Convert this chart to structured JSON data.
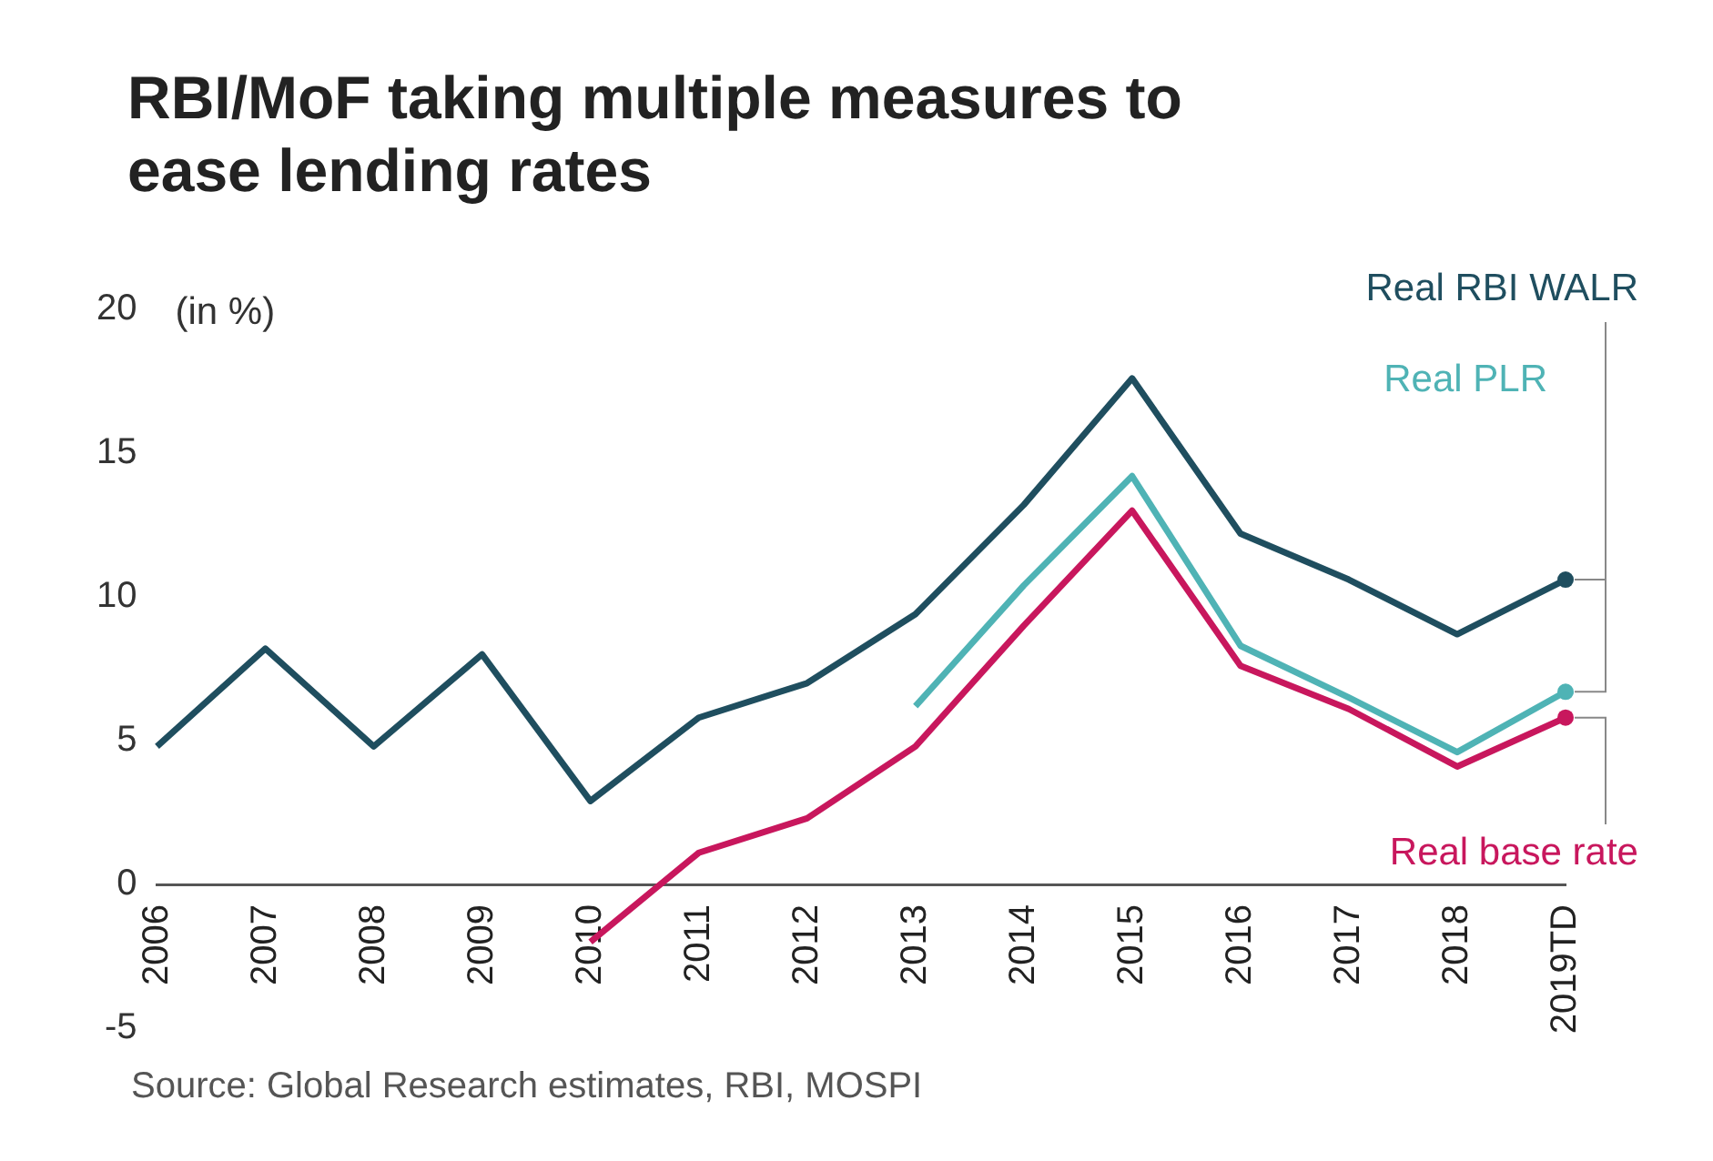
{
  "chart_data": {
    "type": "line",
    "title": "RBI/MoF taking multiple measures to ease lending rates",
    "ylabel": "(in %)",
    "categories": [
      "2006",
      "2007",
      "2008",
      "2009",
      "2010",
      "2011",
      "2012",
      "2013",
      "2014",
      "2015",
      "2016",
      "2017",
      "2018",
      "2019TD"
    ],
    "series": [
      {
        "name": "Real RBI WALR",
        "color": "#1f4e5f",
        "values": [
          4.8,
          8.2,
          4.8,
          8.0,
          2.9,
          5.8,
          7.0,
          9.4,
          13.2,
          17.6,
          12.2,
          10.6,
          8.7,
          10.6
        ]
      },
      {
        "name": "Real PLR",
        "color": "#4fb3b5",
        "values": [
          null,
          null,
          null,
          null,
          null,
          null,
          null,
          6.2,
          10.4,
          14.2,
          8.3,
          6.5,
          4.6,
          6.7
        ]
      },
      {
        "name": "Real base rate",
        "color": "#c8175d",
        "values": [
          null,
          null,
          null,
          null,
          -2.0,
          1.1,
          2.3,
          4.8,
          9.0,
          13.0,
          7.6,
          6.1,
          4.1,
          5.8
        ]
      }
    ],
    "ylim": [
      -5,
      20
    ],
    "yticks": [
      -5,
      0,
      5,
      10,
      15,
      20
    ],
    "grid": false,
    "legend": false,
    "marker": "none",
    "line_style": "solid",
    "annotations": [
      "Source: Global Research estimates, RBI, MOSPI"
    ]
  }
}
